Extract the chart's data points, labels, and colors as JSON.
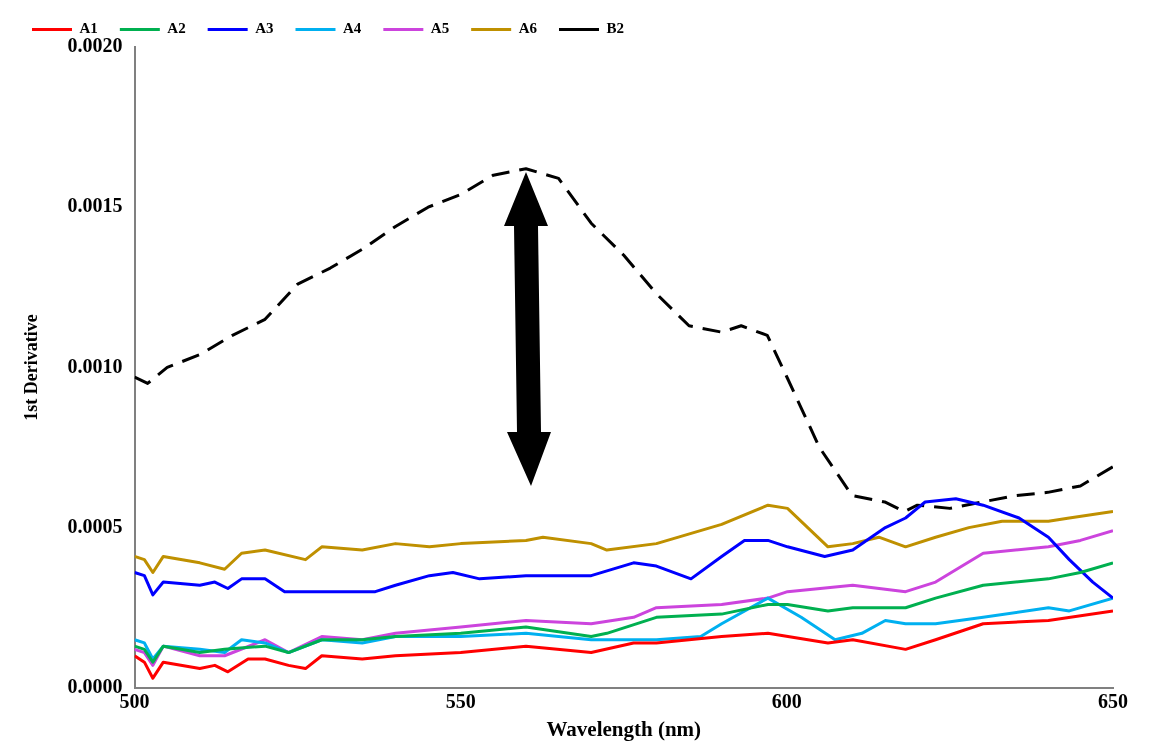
{
  "chart_data": {
    "type": "line",
    "xlabel": "Wavelength (nm)",
    "ylabel": "1st Derivative",
    "xlim": [
      500,
      650
    ],
    "xticks": [
      500,
      550,
      600,
      650
    ],
    "ylim": [
      0,
      0.002
    ],
    "yticks": [
      {
        "value": 0,
        "label": "0.0000"
      },
      {
        "value": 0.0005,
        "label": "0.0005"
      },
      {
        "value": 0.001,
        "label": "0.0010"
      },
      {
        "value": 0.0015,
        "label": "0.0015"
      },
      {
        "value": 0.002,
        "label": "0.0020"
      }
    ],
    "grid": false,
    "legend": "top",
    "marker": "none",
    "series": [
      {
        "name": "A1",
        "color": "#ff0000",
        "x": [
          500,
          501.5,
          502.8,
          504.4,
          510,
          512.3,
          514.3,
          517.4,
          520,
          523.6,
          526.2,
          528.7,
          534.9,
          540,
          550,
          560,
          570,
          576.5,
          580,
          590,
          597.1,
          606.3,
          610.1,
          618.2,
          622.8,
          630.1,
          640.1,
          650
        ],
        "values": [
          0.0001,
          8e-05,
          3e-05,
          8e-05,
          6e-05,
          7e-05,
          5e-05,
          9e-05,
          9e-05,
          7e-05,
          6e-05,
          0.0001,
          9e-05,
          0.0001,
          0.00011,
          0.00013,
          0.00011,
          0.00014,
          0.00014,
          0.00016,
          0.00017,
          0.00014,
          0.00015,
          0.00012,
          0.00015,
          0.0002,
          0.00021,
          0.00024
        ]
      },
      {
        "name": "A2",
        "color": "#00b050",
        "x": [
          500,
          501.5,
          502.8,
          504.4,
          510,
          513.8,
          520,
          523.6,
          528.7,
          534.9,
          540,
          550,
          560,
          570,
          572.4,
          580,
          590,
          597.1,
          600.1,
          606.3,
          610.1,
          618.2,
          622.8,
          630.1,
          640.1,
          645,
          650
        ],
        "values": [
          0.00013,
          0.00012,
          8e-05,
          0.00013,
          0.00011,
          0.00012,
          0.00013,
          0.00011,
          0.00015,
          0.00015,
          0.00016,
          0.00017,
          0.00019,
          0.00016,
          0.00017,
          0.00022,
          0.00023,
          0.00026,
          0.00026,
          0.00024,
          0.00025,
          0.00025,
          0.00028,
          0.00032,
          0.00034,
          0.00036,
          0.00039
        ]
      },
      {
        "name": "A3",
        "color": "#0000ff",
        "x": [
          500,
          501.5,
          502.8,
          504.4,
          510,
          512.3,
          514.3,
          516.4,
          520,
          523,
          526.7,
          532.3,
          536.9,
          540,
          545.2,
          548.8,
          552.9,
          560,
          570,
          576.5,
          580,
          585.3,
          590,
          593.5,
          597.1,
          600.1,
          605.8,
          610.1,
          615.1,
          618.2,
          621.2,
          625.9,
          630.1,
          635.6,
          640.1,
          643.3,
          646.9,
          650
        ],
        "values": [
          0.00036,
          0.00035,
          0.00029,
          0.00033,
          0.00032,
          0.00033,
          0.00031,
          0.00034,
          0.00034,
          0.0003,
          0.0003,
          0.0003,
          0.0003,
          0.00032,
          0.00035,
          0.00036,
          0.00034,
          0.00035,
          0.00035,
          0.00039,
          0.00038,
          0.00034,
          0.00041,
          0.00046,
          0.00046,
          0.00044,
          0.00041,
          0.00043,
          0.0005,
          0.00053,
          0.00058,
          0.00059,
          0.00057,
          0.00053,
          0.00047,
          0.0004,
          0.00033,
          0.00028
        ]
      },
      {
        "name": "A4",
        "color": "#00b0f0",
        "x": [
          500,
          501.5,
          502.8,
          504.4,
          510,
          513.8,
          516.4,
          520,
          523.6,
          528.7,
          534.9,
          540,
          550,
          560,
          570,
          576.5,
          580,
          586.8,
          590,
          597.1,
          602.2,
          607.4,
          611.5,
          615.1,
          618.2,
          622.8,
          630.1,
          640.1,
          643.3,
          650
        ],
        "values": [
          0.00015,
          0.00014,
          9e-05,
          0.00013,
          0.00012,
          0.00011,
          0.00015,
          0.00014,
          0.00011,
          0.00015,
          0.00014,
          0.00016,
          0.00016,
          0.00017,
          0.00015,
          0.00015,
          0.00015,
          0.00016,
          0.0002,
          0.00028,
          0.00022,
          0.00015,
          0.00017,
          0.00021,
          0.0002,
          0.0002,
          0.00022,
          0.00025,
          0.00024,
          0.00028
        ]
      },
      {
        "name": "A5",
        "color": "#cc44dd",
        "x": [
          500,
          501.5,
          502.8,
          504.4,
          510,
          513.8,
          520,
          523.6,
          528.7,
          534.9,
          540,
          550,
          560,
          570,
          576.5,
          580,
          590,
          597.1,
          600.1,
          610.1,
          618.2,
          622.8,
          630.1,
          640.1,
          645,
          650
        ],
        "values": [
          0.00012,
          0.00011,
          7e-05,
          0.00013,
          0.0001,
          0.0001,
          0.00015,
          0.00011,
          0.00016,
          0.00015,
          0.00017,
          0.00019,
          0.00021,
          0.0002,
          0.00022,
          0.00025,
          0.00026,
          0.00028,
          0.0003,
          0.00032,
          0.0003,
          0.00033,
          0.00042,
          0.00044,
          0.00046,
          0.00049
        ]
      },
      {
        "name": "A6",
        "color": "#bf9000",
        "x": [
          500,
          501.5,
          502.8,
          504.4,
          510,
          513.8,
          516.4,
          520,
          526.2,
          528.7,
          534.9,
          540,
          545.2,
          550,
          560,
          562.6,
          570,
          572.4,
          580,
          590,
          597.1,
          600.1,
          606.3,
          610.1,
          614.1,
          618.2,
          622.8,
          627.9,
          633,
          640.1,
          643.3,
          650
        ],
        "values": [
          0.00041,
          0.0004,
          0.00036,
          0.00041,
          0.00039,
          0.00037,
          0.00042,
          0.00043,
          0.0004,
          0.00044,
          0.00043,
          0.00045,
          0.00044,
          0.00045,
          0.00046,
          0.00047,
          0.00045,
          0.00043,
          0.00045,
          0.00051,
          0.00057,
          0.00056,
          0.00044,
          0.00045,
          0.00047,
          0.00044,
          0.00047,
          0.0005,
          0.00052,
          0.00052,
          0.00053,
          0.00055
        ]
      },
      {
        "name": "B2",
        "color": "#000000",
        "line_style": "dashed",
        "x": [
          500,
          502,
          505,
          510,
          515,
          520,
          525,
          530,
          535,
          540,
          545,
          550,
          555,
          560,
          565,
          570,
          575,
          580,
          585,
          590,
          593,
          597,
          600,
          605,
          610,
          615,
          618,
          620,
          625,
          630,
          635,
          640,
          645,
          650
        ],
        "values": [
          0.00097,
          0.00095,
          0.001,
          0.00104,
          0.0011,
          0.00115,
          0.00126,
          0.00131,
          0.00137,
          0.00144,
          0.0015,
          0.00154,
          0.0016,
          0.00162,
          0.00159,
          0.00145,
          0.00135,
          0.00123,
          0.00113,
          0.00111,
          0.00113,
          0.0011,
          0.00097,
          0.00075,
          0.0006,
          0.00058,
          0.00055,
          0.00057,
          0.00056,
          0.00058,
          0.0006,
          0.00061,
          0.00063,
          0.00069
        ]
      }
    ]
  }
}
